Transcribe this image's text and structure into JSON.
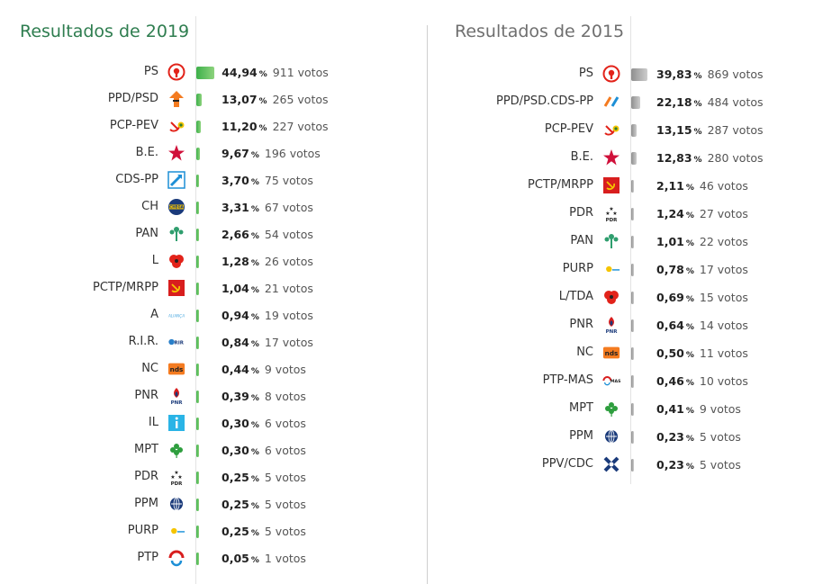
{
  "panels": [
    {
      "title": "Resultados de 2019",
      "accent": "#2e7d4f",
      "rows": [
        {
          "party": "PS",
          "logo": "ps-rose-fist-icon",
          "pct": "44,94",
          "pct_value": 44.94,
          "votes": "911 votos"
        },
        {
          "party": "PPD/PSD",
          "logo": "psd-arrow-icon",
          "pct": "13,07",
          "pct_value": 13.07,
          "votes": "265 votos"
        },
        {
          "party": "PCP-PEV",
          "logo": "cdu-hammer-sickle-icon",
          "pct": "11,20",
          "pct_value": 11.2,
          "votes": "227 votos"
        },
        {
          "party": "B.E.",
          "logo": "be-star-icon",
          "pct": "9,67",
          "pct_value": 9.67,
          "votes": "196 votos"
        },
        {
          "party": "CDS-PP",
          "logo": "cds-arrow-icon",
          "pct": "3,70",
          "pct_value": 3.7,
          "votes": "75 votos"
        },
        {
          "party": "CH",
          "logo": "chega-logo-icon",
          "pct": "3,31",
          "pct_value": 3.31,
          "votes": "67 votos"
        },
        {
          "party": "PAN",
          "logo": "pan-tree-icon",
          "pct": "2,66",
          "pct_value": 2.66,
          "votes": "54 votos"
        },
        {
          "party": "L",
          "logo": "livre-poppy-icon",
          "pct": "1,28",
          "pct_value": 1.28,
          "votes": "26 votos"
        },
        {
          "party": "PCTP/MRPP",
          "logo": "mrpp-hammer-sickle-icon",
          "pct": "1,04",
          "pct_value": 1.04,
          "votes": "21 votos"
        },
        {
          "party": "A",
          "logo": "alianca-wordmark-icon",
          "pct": "0,94",
          "pct_value": 0.94,
          "votes": "19 votos"
        },
        {
          "party": "R.I.R.",
          "logo": "rir-logo-icon",
          "pct": "0,84",
          "pct_value": 0.84,
          "votes": "17 votos"
        },
        {
          "party": "NC",
          "logo": "nds-logo-icon",
          "pct": "0,44",
          "pct_value": 0.44,
          "votes": "9 votos"
        },
        {
          "party": "PNR",
          "logo": "pnr-flame-icon",
          "pct": "0,39",
          "pct_value": 0.39,
          "votes": "8 votos"
        },
        {
          "party": "IL",
          "logo": "il-logo-icon",
          "pct": "0,30",
          "pct_value": 0.3,
          "votes": "6 votos"
        },
        {
          "party": "MPT",
          "logo": "mpt-clover-icon",
          "pct": "0,30",
          "pct_value": 0.3,
          "votes": "6 votos"
        },
        {
          "party": "PDR",
          "logo": "pdr-stars-icon",
          "pct": "0,25",
          "pct_value": 0.25,
          "votes": "5 votos"
        },
        {
          "party": "PPM",
          "logo": "ppm-globe-icon",
          "pct": "0,25",
          "pct_value": 0.25,
          "votes": "5 votos"
        },
        {
          "party": "PURP",
          "logo": "purp-sun-icon",
          "pct": "0,25",
          "pct_value": 0.25,
          "votes": "5 votos"
        },
        {
          "party": "PTP",
          "logo": "ptp-swirl-icon",
          "pct": "0,05",
          "pct_value": 0.05,
          "votes": "1 votos"
        }
      ]
    },
    {
      "title": "Resultados de 2015",
      "accent": "#6f6f6f",
      "rows": [
        {
          "party": "PS",
          "logo": "ps-rose-fist-icon",
          "pct": "39,83",
          "pct_value": 39.83,
          "votes": "869 votos"
        },
        {
          "party": "PPD/PSD.CDS-PP",
          "logo": "paf-coalition-icon",
          "pct": "22,18",
          "pct_value": 22.18,
          "votes": "484 votos"
        },
        {
          "party": "PCP-PEV",
          "logo": "cdu-hammer-sickle-icon",
          "pct": "13,15",
          "pct_value": 13.15,
          "votes": "287 votos"
        },
        {
          "party": "B.E.",
          "logo": "be-star-icon",
          "pct": "12,83",
          "pct_value": 12.83,
          "votes": "280 votos"
        },
        {
          "party": "PCTP/MRPP",
          "logo": "mrpp-hammer-sickle-icon",
          "pct": "2,11",
          "pct_value": 2.11,
          "votes": "46 votos"
        },
        {
          "party": "PDR",
          "logo": "pdr-stars-icon",
          "pct": "1,24",
          "pct_value": 1.24,
          "votes": "27 votos"
        },
        {
          "party": "PAN",
          "logo": "pan-tree-icon",
          "pct": "1,01",
          "pct_value": 1.01,
          "votes": "22 votos"
        },
        {
          "party": "PURP",
          "logo": "purp-sun-icon",
          "pct": "0,78",
          "pct_value": 0.78,
          "votes": "17 votos"
        },
        {
          "party": "L/TDA",
          "logo": "livre-poppy-icon",
          "pct": "0,69",
          "pct_value": 0.69,
          "votes": "15 votos"
        },
        {
          "party": "PNR",
          "logo": "pnr-flame-icon",
          "pct": "0,64",
          "pct_value": 0.64,
          "votes": "14 votos"
        },
        {
          "party": "NC",
          "logo": "nds-logo-icon",
          "pct": "0,50",
          "pct_value": 0.5,
          "votes": "11 votos"
        },
        {
          "party": "PTP-MAS",
          "logo": "ptp-mas-logo-icon",
          "pct": "0,46",
          "pct_value": 0.46,
          "votes": "10 votos"
        },
        {
          "party": "MPT",
          "logo": "mpt-clover-icon",
          "pct": "0,41",
          "pct_value": 0.41,
          "votes": "9 votos"
        },
        {
          "party": "PPM",
          "logo": "ppm-globe-icon",
          "pct": "0,23",
          "pct_value": 0.23,
          "votes": "5 votos"
        },
        {
          "party": "PPV/CDC",
          "logo": "ppv-cross-icon",
          "pct": "0,23",
          "pct_value": 0.23,
          "votes": "5 votos"
        }
      ]
    }
  ],
  "pct_sign": "%",
  "logo_text": {
    "chega": "CHEGA",
    "alianca": "ALIANÇA",
    "rir": "RIR",
    "nds": "nds",
    "pnr": "PNR",
    "pdr": "PDR",
    "ptp_mas": "MAS"
  },
  "colors": {
    "bar_2019": "#3db04a",
    "bar_2015": "#9a9a9a",
    "ps_red": "#e2231a",
    "psd_orange": "#f47b20",
    "cds_blue": "#1d8fd6",
    "pan_green": "#2f9e6e"
  }
}
